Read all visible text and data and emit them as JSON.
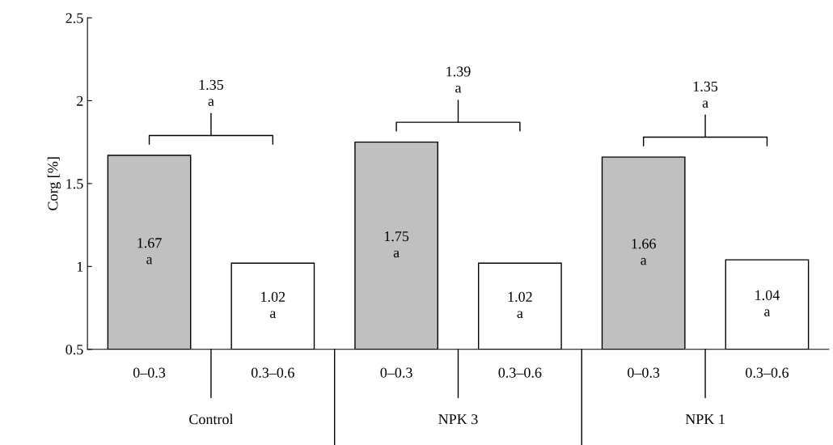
{
  "chart_data": {
    "type": "bar",
    "ylabel": "Corg [%]",
    "categories": [
      "0–0.3",
      "0.3–0.6",
      "0–0.3",
      "0.3–0.6",
      "0–0.3",
      "0.3–0.6"
    ],
    "values": [
      1.67,
      1.02,
      1.75,
      1.02,
      1.66,
      1.04
    ],
    "colors": [
      "#c0c0c0",
      "#ffffff",
      "#c0c0c0",
      "#ffffff",
      "#c0c0c0",
      "#ffffff"
    ],
    "value_labels": [
      "1.67\na",
      "1.02\na",
      "1.75\na",
      "1.02\na",
      "1.66\na",
      "1.04\na"
    ],
    "annotations": [
      "Control",
      "NPK 3",
      "NPK 1",
      "1.35\na",
      "1.39\na",
      "1.35\na"
    ],
    "ylim": [
      0.5,
      2.5
    ],
    "yticks": [
      0.5,
      1,
      1.5,
      2,
      2.5
    ],
    "grid": false
  }
}
